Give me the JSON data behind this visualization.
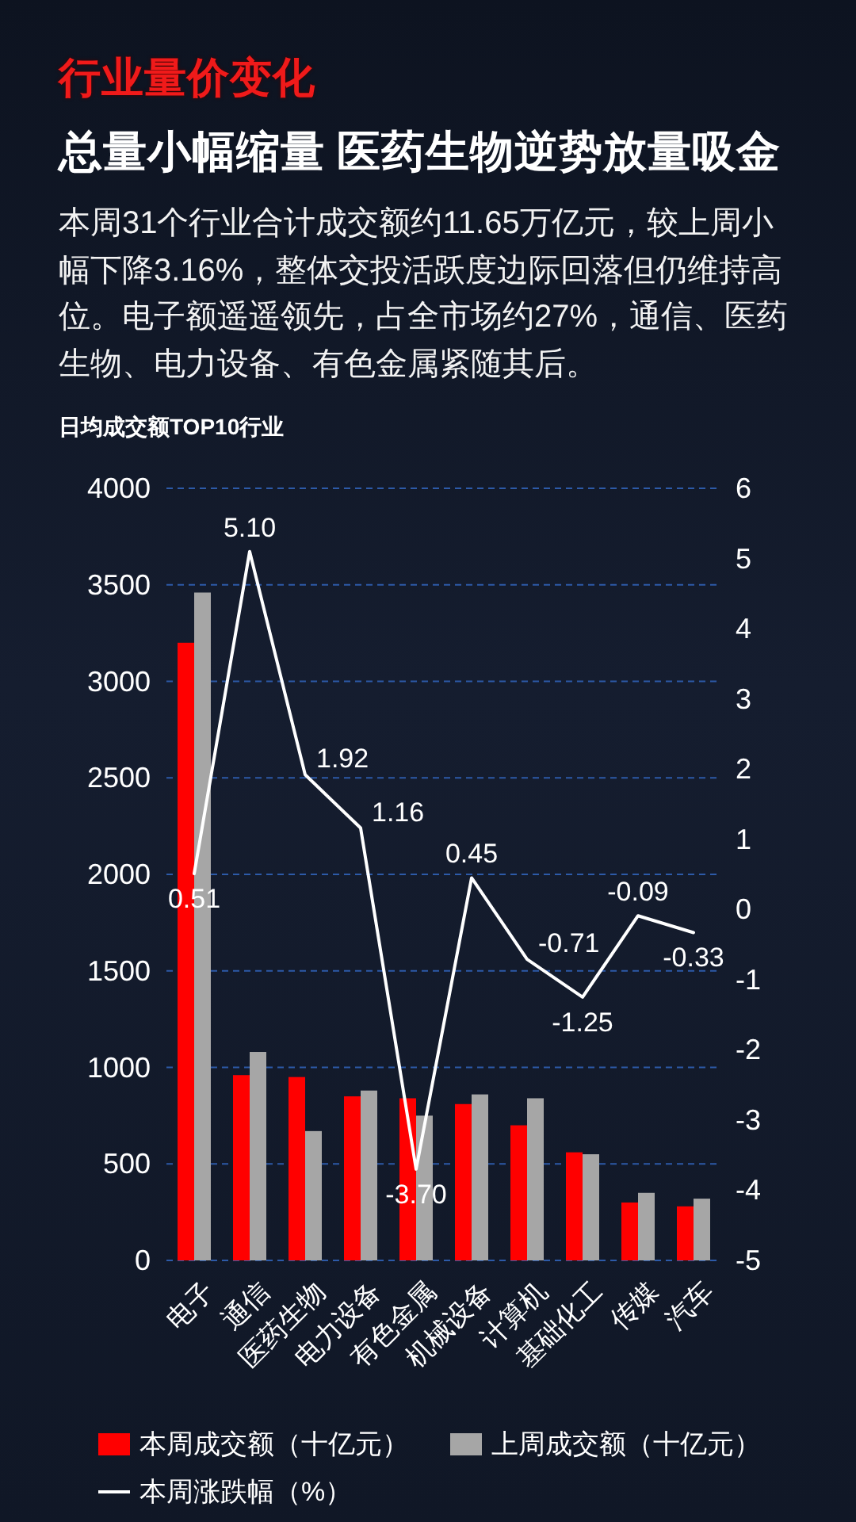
{
  "chart_data": {
    "type": "bar",
    "title": "行业量价变化",
    "subtitle": "总量小幅缩量 医药生物逆势放量吸金",
    "annotations": [
      "本周31个行业合计成交额约11.65万亿元，较上周小幅下降3.16%，整体交投活跃度边际回落但仍维持高位。电子额遥遥领先，占全市场约27%，通信、医药生物、电力设备、有色金属紧随其后。",
      "日均成交额TOP10行业"
    ],
    "categories": [
      "电子",
      "通信",
      "医药生物",
      "电力设备",
      "有色金属",
      "机械设备",
      "计算机",
      "基础化工",
      "传媒",
      "汽车"
    ],
    "series": [
      {
        "name": "本周成交额（十亿元）",
        "color": "#ff0000",
        "values": [
          3200,
          960,
          950,
          850,
          840,
          810,
          700,
          560,
          300,
          280
        ]
      },
      {
        "name": "上周成交额（十亿元）",
        "color": "#a6a6a6",
        "values": [
          3460,
          1080,
          670,
          880,
          750,
          860,
          840,
          550,
          350,
          320
        ]
      },
      {
        "name": "本周涨跌幅（%）",
        "type": "line",
        "axis": "y2",
        "color": "#ffffff",
        "values": [
          0.51,
          5.1,
          1.92,
          1.16,
          -3.7,
          0.45,
          -0.71,
          -1.25,
          -0.09,
          -0.33
        ],
        "value_labels": [
          "0.51",
          "5.10",
          "1.92",
          "1.16",
          "-3.70",
          "0.45",
          "-0.71",
          "-1.25",
          "-0.09",
          "-0.33"
        ]
      }
    ],
    "ylim": [
      0,
      4000
    ],
    "yticks": [
      0,
      500,
      1000,
      1500,
      2000,
      2500,
      3000,
      3500,
      4000
    ],
    "y2lim": [
      -5,
      6
    ],
    "y2ticks": [
      -5,
      -4,
      -3,
      -2,
      -1,
      0,
      1,
      2,
      3,
      4,
      5,
      6
    ],
    "grid": "y",
    "legend": "bottom"
  }
}
